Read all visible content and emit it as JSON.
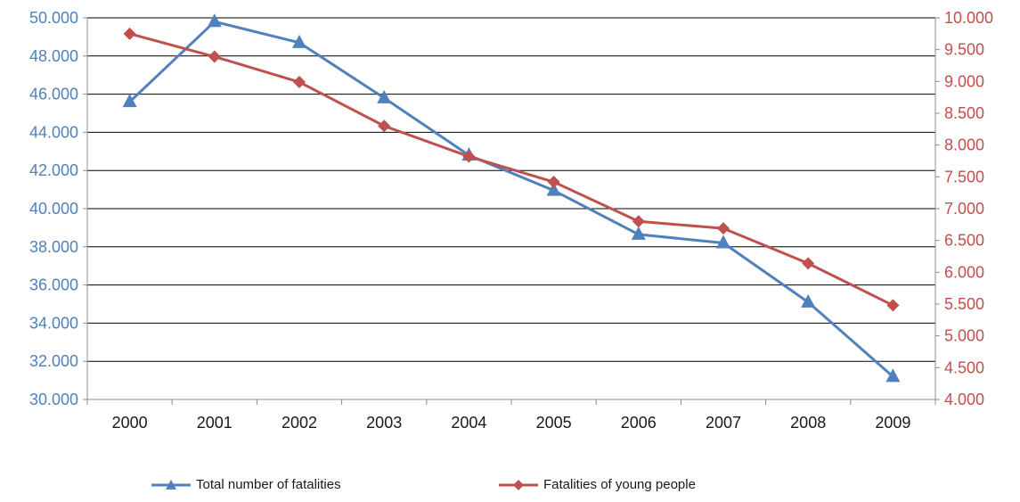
{
  "chart_data": {
    "type": "line",
    "title": "",
    "xlabel": "",
    "ylabel": "",
    "categories": [
      "2000",
      "2001",
      "2002",
      "2003",
      "2004",
      "2005",
      "2006",
      "2007",
      "2008",
      "2009"
    ],
    "y_left": {
      "lim": [
        30000,
        50000
      ],
      "ticks": [
        30000,
        32000,
        34000,
        36000,
        38000,
        40000,
        42000,
        44000,
        46000,
        48000,
        50000
      ],
      "tick_labels": [
        "30.000",
        "32.000",
        "34.000",
        "36.000",
        "38.000",
        "40.000",
        "42.000",
        "44.000",
        "46.000",
        "48.000",
        "50.000"
      ],
      "color": "#4F81BD"
    },
    "y_right": {
      "lim": [
        4000,
        10000
      ],
      "ticks": [
        4000,
        4500,
        5000,
        5500,
        6000,
        6500,
        7000,
        7500,
        8000,
        8500,
        9000,
        9500,
        10000
      ],
      "tick_labels": [
        "4.000",
        "4.500",
        "5.000",
        "5.500",
        "6.000",
        "6.500",
        "7.000",
        "7.500",
        "8.000",
        "8.500",
        "9.000",
        "9.500",
        "10.000"
      ],
      "color": "#C0504D"
    },
    "series": [
      {
        "name": "Total number of fatalities",
        "axis": "left",
        "color": "#4F81BD",
        "marker": "triangle",
        "values": [
          45600,
          49800,
          48700,
          45800,
          42800,
          40950,
          38650,
          38200,
          35100,
          31200
        ]
      },
      {
        "name": "Fatalities of young people",
        "axis": "right",
        "color": "#C0504D",
        "marker": "diamond",
        "values": [
          9750,
          9390,
          8990,
          8300,
          7820,
          7420,
          6800,
          6690,
          6140,
          5480
        ]
      }
    ],
    "grid": true,
    "legend_position": "bottom"
  }
}
